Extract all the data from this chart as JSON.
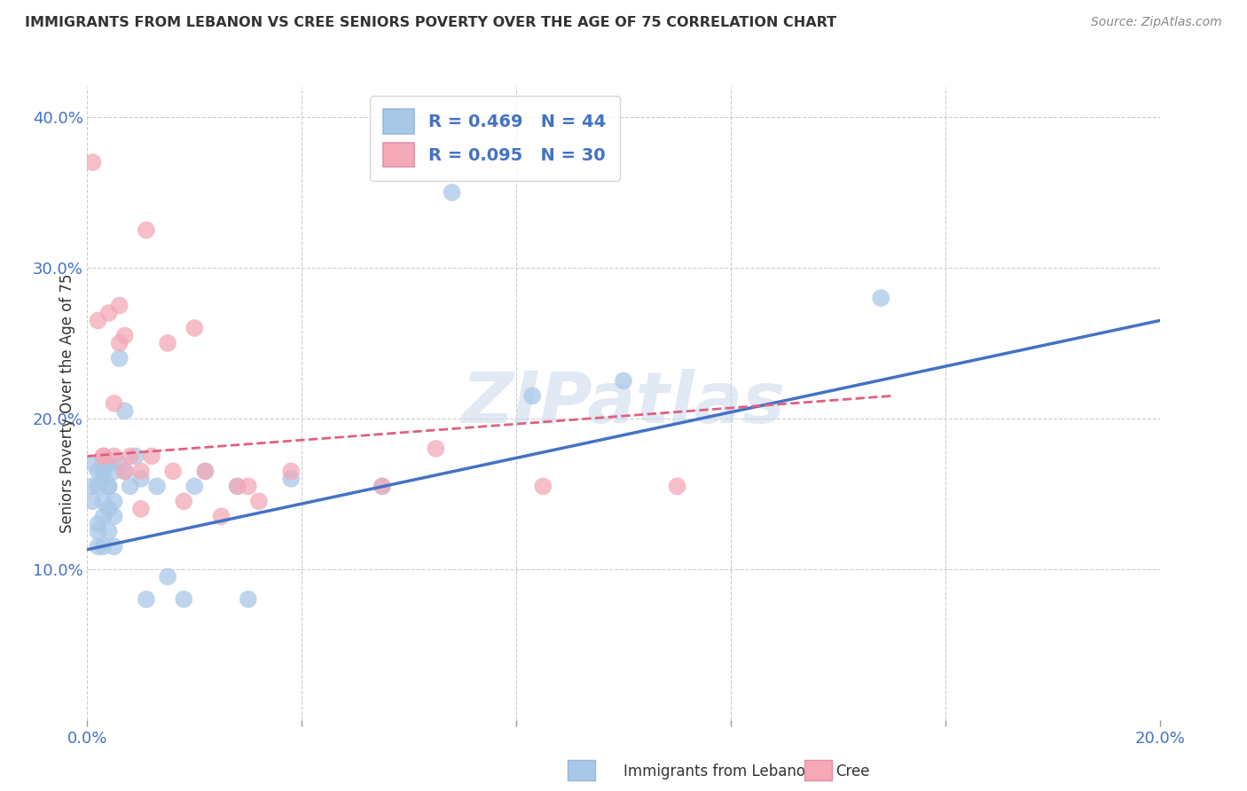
{
  "title": "IMMIGRANTS FROM LEBANON VS CREE SENIORS POVERTY OVER THE AGE OF 75 CORRELATION CHART",
  "source": "Source: ZipAtlas.com",
  "ylabel": "Seniors Poverty Over the Age of 75",
  "xlim": [
    0.0,
    0.2
  ],
  "ylim": [
    0.0,
    0.42
  ],
  "xticks": [
    0.0,
    0.04,
    0.08,
    0.12,
    0.16,
    0.2
  ],
  "yticks": [
    0.1,
    0.2,
    0.3,
    0.4
  ],
  "ytick_labels": [
    "10.0%",
    "20.0%",
    "30.0%",
    "40.0%"
  ],
  "blue_color": "#a8c8e8",
  "pink_color": "#f4a8b8",
  "blue_line_color": "#4472c4",
  "pink_line_color": "#e06080",
  "legend_r_blue": "R = 0.469",
  "legend_n_blue": "N = 44",
  "legend_r_pink": "R = 0.095",
  "legend_n_pink": "N = 30",
  "watermark": "ZIPatlas",
  "blue_scatter_x": [
    0.001,
    0.001,
    0.001,
    0.002,
    0.002,
    0.002,
    0.002,
    0.002,
    0.003,
    0.003,
    0.003,
    0.003,
    0.003,
    0.003,
    0.004,
    0.004,
    0.004,
    0.004,
    0.004,
    0.005,
    0.005,
    0.005,
    0.005,
    0.006,
    0.006,
    0.007,
    0.007,
    0.008,
    0.009,
    0.01,
    0.011,
    0.013,
    0.015,
    0.018,
    0.02,
    0.022,
    0.028,
    0.03,
    0.038,
    0.055,
    0.068,
    0.083,
    0.1,
    0.148
  ],
  "blue_scatter_y": [
    0.155,
    0.145,
    0.17,
    0.155,
    0.13,
    0.165,
    0.125,
    0.115,
    0.16,
    0.145,
    0.135,
    0.165,
    0.17,
    0.115,
    0.155,
    0.14,
    0.17,
    0.155,
    0.125,
    0.165,
    0.145,
    0.115,
    0.135,
    0.24,
    0.17,
    0.205,
    0.165,
    0.155,
    0.175,
    0.16,
    0.08,
    0.155,
    0.095,
    0.08,
    0.155,
    0.165,
    0.155,
    0.08,
    0.16,
    0.155,
    0.35,
    0.215,
    0.225,
    0.28
  ],
  "pink_scatter_x": [
    0.001,
    0.002,
    0.003,
    0.003,
    0.004,
    0.005,
    0.005,
    0.006,
    0.006,
    0.007,
    0.007,
    0.008,
    0.01,
    0.01,
    0.011,
    0.012,
    0.015,
    0.016,
    0.018,
    0.02,
    0.022,
    0.025,
    0.028,
    0.03,
    0.032,
    0.038,
    0.055,
    0.065,
    0.085,
    0.11
  ],
  "pink_scatter_y": [
    0.37,
    0.265,
    0.175,
    0.175,
    0.27,
    0.175,
    0.21,
    0.275,
    0.25,
    0.165,
    0.255,
    0.175,
    0.165,
    0.14,
    0.325,
    0.175,
    0.25,
    0.165,
    0.145,
    0.26,
    0.165,
    0.135,
    0.155,
    0.155,
    0.145,
    0.165,
    0.155,
    0.18,
    0.155,
    0.155
  ],
  "blue_trend_x": [
    0.0,
    0.2
  ],
  "blue_trend_y": [
    0.113,
    0.265
  ],
  "pink_trend_x": [
    0.0,
    0.15
  ],
  "pink_trend_y": [
    0.175,
    0.215
  ]
}
